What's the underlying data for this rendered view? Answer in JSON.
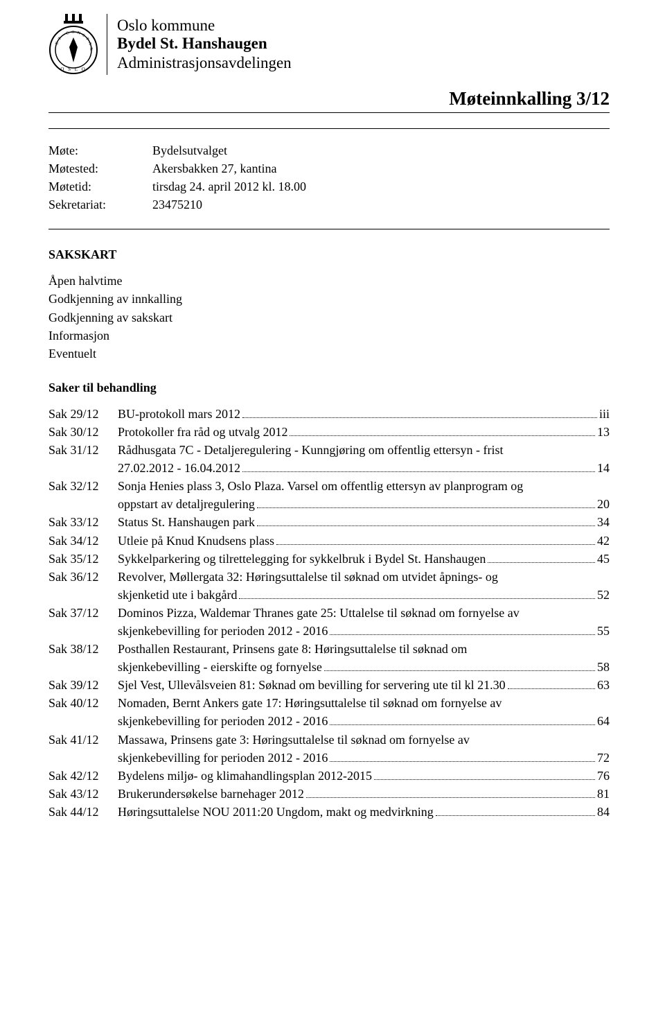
{
  "header": {
    "org_line1": "Oslo kommune",
    "org_line2": "Bydel St. Hanshaugen",
    "org_line3": "Administrasjonsavdelingen",
    "doc_title": "Møteinnkalling 3/12"
  },
  "meta": [
    {
      "label": "Møte:",
      "value": "Bydelsutvalget"
    },
    {
      "label": "Møtested:",
      "value": "Akersbakken 27, kantina"
    },
    {
      "label": "Møtetid:",
      "value": "tirsdag 24. april 2012 kl. 18.00"
    },
    {
      "label": "Sekretariat:",
      "value": "23475210"
    }
  ],
  "sakskart_heading": "SAKSKART",
  "preamble": [
    "Åpen halvtime",
    "Godkjenning av innkalling",
    "Godkjenning av sakskart",
    "Informasjon",
    "Eventuelt"
  ],
  "toc_heading": "Saker til behandling",
  "toc": [
    {
      "sak": "Sak 29/12",
      "lines": [
        "BU-protokoll mars 2012"
      ],
      "page": "iii"
    },
    {
      "sak": "Sak 30/12",
      "lines": [
        "Protokoller fra råd og utvalg 2012"
      ],
      "page": "13"
    },
    {
      "sak": "Sak 31/12",
      "lines": [
        "Rådhusgata 7C - Detaljeregulering - Kunngjøring om offentlig ettersyn - frist",
        "27.02.2012 - 16.04.2012"
      ],
      "page": "14"
    },
    {
      "sak": "Sak 32/12",
      "lines": [
        "Sonja Henies plass 3, Oslo Plaza. Varsel om offentlig ettersyn av planprogram og",
        "oppstart av detaljregulering"
      ],
      "page": "20"
    },
    {
      "sak": "Sak 33/12",
      "lines": [
        "Status St. Hanshaugen park"
      ],
      "page": "34"
    },
    {
      "sak": "Sak 34/12",
      "lines": [
        "Utleie på Knud Knudsens plass"
      ],
      "page": "42"
    },
    {
      "sak": "Sak 35/12",
      "lines": [
        "Sykkelparkering og tilrettelegging for sykkelbruk i Bydel St. Hanshaugen"
      ],
      "page": "45"
    },
    {
      "sak": "Sak 36/12",
      "lines": [
        "Revolver, Møllergata 32: Høringsuttalelse til søknad om utvidet åpnings- og",
        "skjenketid ute i bakgård"
      ],
      "page": "52"
    },
    {
      "sak": "Sak 37/12",
      "lines": [
        "Dominos Pizza, Waldemar Thranes gate 25: Uttalelse til søknad om fornyelse av",
        "skjenkebevilling for perioden 2012 - 2016"
      ],
      "page": "55"
    },
    {
      "sak": "Sak 38/12",
      "lines": [
        "Posthallen Restaurant, Prinsens gate 8: Høringsuttalelse til søknad om",
        "skjenkebevilling - eierskifte og fornyelse"
      ],
      "page": "58"
    },
    {
      "sak": "Sak 39/12",
      "lines": [
        "Sjel Vest, Ullevålsveien  81: Søknad om bevilling for servering ute til kl 21.30"
      ],
      "page": "63"
    },
    {
      "sak": "Sak 40/12",
      "lines": [
        "Nomaden, Bernt Ankers gate 17: Høringsuttalelse til søknad om fornyelse av",
        "skjenkebevilling for perioden 2012 - 2016"
      ],
      "page": "64"
    },
    {
      "sak": "Sak 41/12",
      "lines": [
        "Massawa, Prinsens gate 3: Høringsuttalelse til søknad om fornyelse av",
        "skjenkebevilling for perioden 2012 - 2016"
      ],
      "page": "72"
    },
    {
      "sak": "Sak 42/12",
      "lines": [
        "Bydelens miljø- og klimahandlingsplan 2012-2015"
      ],
      "page": "76"
    },
    {
      "sak": "Sak 43/12",
      "lines": [
        "Brukerundersøkelse barnehager 2012"
      ],
      "page": "81"
    },
    {
      "sak": "Sak 44/12",
      "lines": [
        "Høringsuttalelse NOU 2011:20 Ungdom, makt og medvirkning"
      ],
      "page": "84"
    }
  ],
  "colors": {
    "text": "#000000",
    "background": "#ffffff",
    "rule": "#000000"
  },
  "typography": {
    "body_fontsize_pt": 13,
    "title_fontsize_pt": 20,
    "font_family": "Times New Roman"
  }
}
